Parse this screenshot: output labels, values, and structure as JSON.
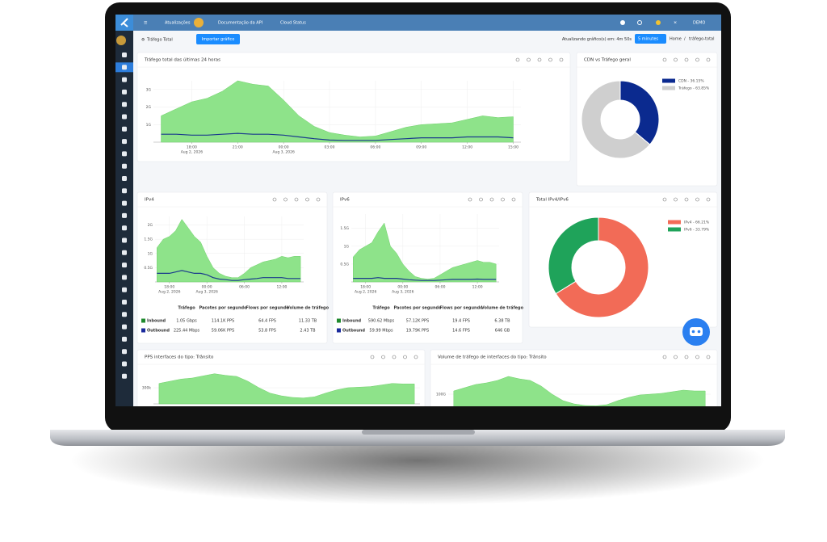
{
  "topbar": {
    "links": [
      "Atualizações",
      "Documentação da API",
      "Cloud Status"
    ],
    "user": "DEMO"
  },
  "header": {
    "title": "Tráfego Total",
    "button": "Importar gráfico",
    "refresh": "Atualizando gráfico(s) em: 4m 50s",
    "interval": "5 minutes",
    "breadcrumb": [
      "Home",
      "/",
      "tráfego-total"
    ]
  },
  "panels": [
    {
      "title": "Tráfego total das últimas 24 horas",
      "chart": {
        "type": "area",
        "grid": true,
        "x": [
          16,
          17,
          18,
          19,
          20,
          21,
          22,
          23,
          24,
          25,
          26,
          27,
          28,
          29,
          30,
          31,
          32,
          33,
          34,
          35,
          36,
          37,
          38,
          39
        ],
        "series": [
          {
            "color": "#8ee38a",
            "values": [
              1.5,
              1.9,
              2.3,
              2.5,
              2.9,
              3.5,
              3.3,
              3.2,
              2.4,
              1.5,
              0.9,
              0.55,
              0.4,
              0.3,
              0.35,
              0.6,
              0.85,
              1.0,
              1.05,
              1.1,
              1.3,
              1.5,
              1.4,
              1.45
            ]
          },
          {
            "color": "#1a3a8c",
            "values": [
              0.45,
              0.45,
              0.4,
              0.4,
              0.45,
              0.5,
              0.45,
              0.45,
              0.4,
              0.3,
              0.2,
              0.12,
              0.1,
              0.1,
              0.1,
              0.15,
              0.2,
              0.25,
              0.25,
              0.25,
              0.3,
              0.3,
              0.3,
              0.25
            ]
          }
        ],
        "xlim": [
          15.5,
          39.5
        ],
        "xticks": [
          {
            "value": 18,
            "label": "18:00"
          },
          {
            "value": 21,
            "label": "21:00"
          },
          {
            "value": 24,
            "label": "00:00"
          },
          {
            "value": 27,
            "label": "03:00"
          },
          {
            "value": 30,
            "label": "06:00"
          },
          {
            "value": 33,
            "label": "09:00"
          },
          {
            "value": 36,
            "label": "12:00"
          },
          {
            "value": 39,
            "label": "15:00"
          }
        ],
        "xtick_dates": [
          {
            "value": 18,
            "label": "Aug 2, 2026"
          },
          {
            "value": 24,
            "label": "Aug 3, 2026"
          }
        ],
        "ylim": [
          0,
          3.5
        ],
        "yticks": [
          {
            "value": 1,
            "label": "1G"
          },
          {
            "value": 2,
            "label": "2G"
          },
          {
            "value": 3,
            "label": "3G"
          }
        ]
      }
    },
    {
      "title": "CDN vs Tráfego geral",
      "chart": {
        "type": "donut",
        "categories": [
          "CDN - 36.15%",
          "Tráfego - 63.85%"
        ],
        "values": [
          36.15,
          63.85
        ],
        "colors": [
          "#0b2a8f",
          "#cfcfcf"
        ]
      }
    },
    {
      "title": "IPv4",
      "chart": {
        "type": "area",
        "grid": true,
        "x": [
          16,
          17,
          18,
          19,
          20,
          21,
          22,
          23,
          24,
          25,
          26,
          27,
          28,
          29,
          30,
          31,
          32,
          33,
          34,
          35,
          36,
          37,
          38,
          39
        ],
        "series": [
          {
            "color": "#8ee38a",
            "values": [
              1.2,
              1.5,
              1.6,
              1.8,
              2.2,
              1.9,
              1.6,
              1.4,
              0.9,
              0.5,
              0.3,
              0.2,
              0.15,
              0.15,
              0.3,
              0.5,
              0.6,
              0.7,
              0.75,
              0.8,
              0.9,
              0.85,
              0.9,
              0.9
            ]
          },
          {
            "color": "#1a3a8c",
            "values": [
              0.3,
              0.3,
              0.3,
              0.35,
              0.4,
              0.35,
              0.3,
              0.3,
              0.25,
              0.15,
              0.1,
              0.08,
              0.05,
              0.05,
              0.08,
              0.1,
              0.12,
              0.15,
              0.15,
              0.15,
              0.15,
              0.12,
              0.12,
              0.12
            ]
          }
        ],
        "xlim": [
          15.7,
          39.5
        ],
        "xticks": [
          {
            "value": 18,
            "label": "18:00"
          },
          {
            "value": 24,
            "label": "00:00"
          },
          {
            "value": 30,
            "label": "06:00"
          },
          {
            "value": 36,
            "label": "12:00"
          }
        ],
        "xtick_dates": [
          {
            "value": 18,
            "label": "Aug 2, 2026"
          },
          {
            "value": 24,
            "label": "Aug 3, 2026"
          }
        ],
        "ylim": [
          0,
          2.3
        ],
        "yticks": [
          {
            "value": 0.5,
            "label": "0.5G"
          },
          {
            "value": 1,
            "label": "1G"
          },
          {
            "value": 1.5,
            "label": "1.5G"
          },
          {
            "value": 2,
            "label": "2G"
          }
        ]
      },
      "table": {
        "columns": [
          "Tráfego",
          "Pacotes por segundo",
          "Flows por segundo",
          "Volume de tráfego"
        ],
        "rows": [
          [
            "Inbound",
            "1.05 Gbps",
            "114.1K PPS",
            "64.4 FPS",
            "11.33 TB"
          ],
          [
            "Outbound",
            "225.44 Mbps",
            "59.06K PPS",
            "53.8 FPS",
            "2.43 TB"
          ]
        ],
        "row_colors": [
          "#1f8a2e",
          "#1a2a9c"
        ]
      }
    },
    {
      "title": "IPv6",
      "chart": {
        "type": "area",
        "grid": true,
        "x": [
          16,
          17,
          18,
          19,
          20,
          21,
          22,
          23,
          24,
          25,
          26,
          27,
          28,
          29,
          30,
          31,
          32,
          33,
          34,
          35,
          36,
          37,
          38,
          39
        ],
        "series": [
          {
            "color": "#8ee38a",
            "values": [
              0.7,
              0.9,
              1.0,
              1.1,
              1.4,
              1.65,
              1.0,
              0.8,
              0.5,
              0.3,
              0.15,
              0.1,
              0.08,
              0.1,
              0.2,
              0.3,
              0.4,
              0.45,
              0.5,
              0.55,
              0.6,
              0.55,
              0.55,
              0.5
            ]
          },
          {
            "color": "#1a3a8c",
            "values": [
              0.1,
              0.1,
              0.1,
              0.1,
              0.12,
              0.1,
              0.1,
              0.1,
              0.08,
              0.06,
              0.05,
              0.04,
              0.04,
              0.04,
              0.05,
              0.06,
              0.07,
              0.07,
              0.07,
              0.07,
              0.08,
              0.07,
              0.07,
              0.07
            ]
          }
        ],
        "xlim": [
          15.7,
          39.5
        ],
        "xticks": [
          {
            "value": 18,
            "label": "18:00"
          },
          {
            "value": 24,
            "label": "00:00"
          },
          {
            "value": 30,
            "label": "06:00"
          },
          {
            "value": 36,
            "label": "12:00"
          }
        ],
        "xtick_dates": [
          {
            "value": 18,
            "label": "Aug 2, 2026"
          },
          {
            "value": 24,
            "label": "Aug 3, 2026"
          }
        ],
        "ylim": [
          0,
          1.9
        ],
        "yticks": [
          {
            "value": 0.5,
            "label": "0.5G"
          },
          {
            "value": 1,
            "label": "1G"
          },
          {
            "value": 1.5,
            "label": "1.5G"
          }
        ]
      },
      "table": {
        "columns": [
          "Tráfego",
          "Pacotes por segundo",
          "Flows por segundo",
          "Volume de tráfego"
        ],
        "rows": [
          [
            "Inbound",
            "590.62 Mbps",
            "57.12K PPS",
            "19.4 FPS",
            "6.38 TB"
          ],
          [
            "Outbound",
            "59.99 Mbps",
            "19.79K PPS",
            "14.6 FPS",
            "646 GB"
          ]
        ],
        "row_colors": [
          "#1f8a2e",
          "#1a2a9c"
        ]
      }
    },
    {
      "title": "Total IPv4/IPv6",
      "chart": {
        "type": "donut",
        "categories": [
          "IPv4 - 66.21%",
          "IPv6 - 33.79%"
        ],
        "values": [
          66.21,
          33.79
        ],
        "colors": [
          "#f26b57",
          "#1fa35a"
        ]
      }
    },
    {
      "title": "PPS interfaces do tipo: Trânsito",
      "chart": {
        "type": "area",
        "grid": true,
        "x": [
          16,
          17,
          18,
          19,
          20,
          21,
          22,
          23,
          24,
          25,
          26,
          27,
          28,
          29,
          30,
          31,
          32,
          33,
          34,
          35,
          36,
          37,
          38,
          39
        ],
        "series": [
          {
            "color": "#8ee38a",
            "values": [
              380,
              420,
              460,
              480,
              520,
              560,
              530,
              510,
              420,
              300,
              200,
              150,
              120,
              110,
              130,
              200,
              260,
              300,
              310,
              320,
              350,
              380,
              370,
              370
            ]
          }
        ],
        "xlim": [
          15.5,
          39.5
        ],
        "ylim": [
          0,
          600
        ],
        "yticks": [
          {
            "value": 300,
            "label": "300k"
          }
        ]
      }
    },
    {
      "title": "Volume de tráfego de interfaces do tipo: Trânsito",
      "chart": {
        "type": "area",
        "grid": true,
        "x": [
          16,
          17,
          18,
          19,
          20,
          21,
          22,
          23,
          24,
          25,
          26,
          27,
          28,
          29,
          30,
          31,
          32,
          33,
          34,
          35,
          36,
          37,
          38,
          39
        ],
        "series": [
          {
            "color": "#8ee38a",
            "values": [
              120,
              140,
              160,
              170,
              185,
              210,
              195,
              185,
              150,
              100,
              60,
              40,
              30,
              28,
              35,
              60,
              80,
              95,
              100,
              105,
              115,
              125,
              120,
              120
            ]
          }
        ],
        "xlim": [
          15.5,
          39.5
        ],
        "ylim": [
          0,
          215
        ],
        "yticks": [
          {
            "value": 100,
            "label": "100G"
          }
        ]
      }
    }
  ]
}
